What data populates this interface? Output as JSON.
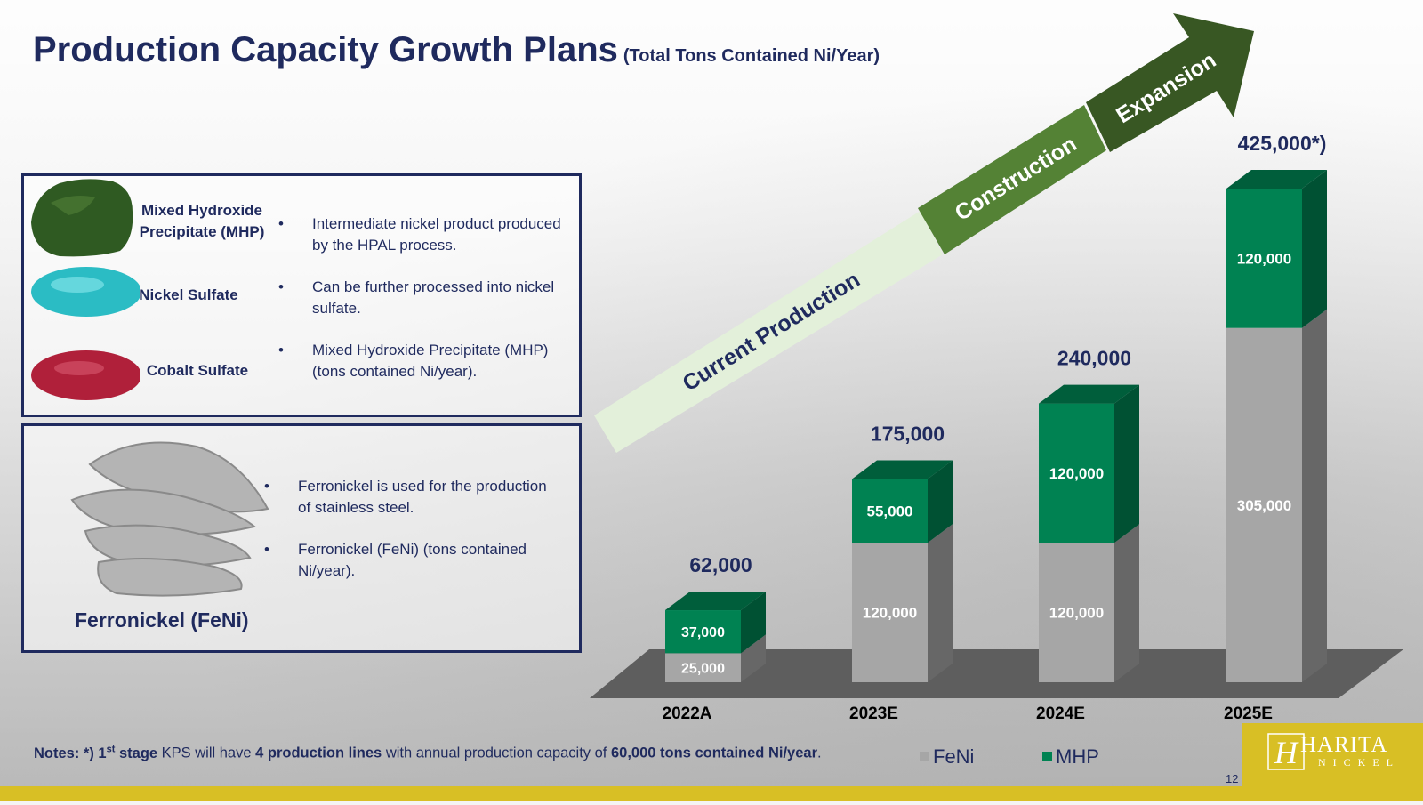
{
  "title": {
    "main": "Production Capacity Growth Plans",
    "sub": "(Total Tons Contained Ni/Year)"
  },
  "products": [
    {
      "name": "Mixed Hydroxide Precipitate (MHP)",
      "color": "#2f5a22"
    },
    {
      "name": "Nickel Sulfate",
      "color": "#2bbcc4"
    },
    {
      "name": "Cobalt Sulfate",
      "color": "#b0203a"
    }
  ],
  "product_bullets": [
    "Intermediate nickel product produced by the HPAL process.",
    "Can be further processed into nickel sulfate.",
    "Mixed Hydroxide Precipitate (MHP) (tons contained Ni/year)."
  ],
  "feni": {
    "name": "Ferronickel (FeNi)",
    "bullets": [
      "Ferronickel is used for the production of stainless steel.",
      "Ferronickel (FeNi) (tons contained Ni/year)."
    ]
  },
  "stages": [
    "Current Production",
    "Construction",
    "Expansion"
  ],
  "stage_colors": [
    "#e3f0da",
    "#548235",
    "#385723"
  ],
  "notes": {
    "prefix": "Notes: *) 1",
    "sup": "st",
    "p1": " stage",
    "p2": " KPS will have ",
    "p3": "4 production lines",
    "p4": " with annual production capacity of ",
    "p5": "60,000 tons contained Ni/year",
    "p6": "."
  },
  "page_number": "12",
  "logo": {
    "letter": "H",
    "name": "HARITA",
    "sub": "NICKEL"
  },
  "chart_data": {
    "type": "bar",
    "stacked": true,
    "categories": [
      "2022A",
      "2023E",
      "2024E",
      "2025E"
    ],
    "series": [
      {
        "name": "FeNi",
        "color": "#a6a6a6",
        "values": [
          25000,
          120000,
          120000,
          305000
        ],
        "labels": [
          "25,000",
          "120,000",
          "120,000",
          "305,000"
        ]
      },
      {
        "name": "MHP",
        "color": "#008252",
        "values": [
          37000,
          55000,
          120000,
          120000
        ],
        "labels": [
          "37,000",
          "55,000",
          "120,000",
          "120,000"
        ]
      }
    ],
    "total_labels": [
      "62,000",
      "175,000",
      "240,000",
      "425,000*)"
    ],
    "ylim": [
      0,
      425000
    ],
    "grid": false,
    "legend": "bottom"
  }
}
